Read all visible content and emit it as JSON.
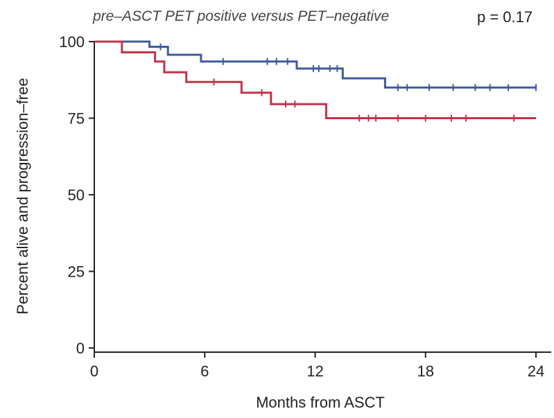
{
  "chart_data": {
    "type": "line",
    "subtype": "kaplan-meier-step",
    "title": "pre–ASCT PET positive versus PET–negative",
    "annotation": "p = 0.17",
    "xlabel": "Months from ASCT",
    "ylabel": "Percent alive and progression–free",
    "xlim": [
      0,
      24
    ],
    "ylim": [
      0,
      100
    ],
    "xticks": [
      0,
      6,
      12,
      18,
      24
    ],
    "yticks": [
      0,
      25,
      50,
      75,
      100
    ],
    "grid": false,
    "legend": "none",
    "series": [
      {
        "color": "#3f5a9c",
        "steps": [
          [
            0,
            100
          ],
          [
            3.0,
            100
          ],
          [
            3.0,
            98.3
          ],
          [
            4.0,
            98.3
          ],
          [
            4.0,
            95.7
          ],
          [
            5.8,
            95.7
          ],
          [
            5.8,
            93.5
          ],
          [
            11.0,
            93.5
          ],
          [
            11.0,
            91.2
          ],
          [
            13.5,
            91.2
          ],
          [
            13.5,
            88.0
          ],
          [
            15.8,
            88.0
          ],
          [
            15.8,
            85.0
          ],
          [
            24.0,
            85.0
          ]
        ],
        "censors": [
          [
            3.6,
            98.3
          ],
          [
            7.0,
            93.5
          ],
          [
            9.4,
            93.5
          ],
          [
            9.9,
            93.5
          ],
          [
            10.5,
            93.5
          ],
          [
            11.9,
            91.2
          ],
          [
            12.2,
            91.2
          ],
          [
            12.8,
            91.2
          ],
          [
            13.2,
            91.2
          ],
          [
            16.5,
            85.0
          ],
          [
            17.0,
            85.0
          ],
          [
            18.2,
            85.0
          ],
          [
            19.5,
            85.0
          ],
          [
            20.7,
            85.0
          ],
          [
            21.5,
            85.0
          ],
          [
            22.5,
            85.0
          ],
          [
            24.0,
            85.0
          ]
        ]
      },
      {
        "color": "#c0334a",
        "steps": [
          [
            0,
            100
          ],
          [
            1.5,
            100
          ],
          [
            1.5,
            96.5
          ],
          [
            3.3,
            96.5
          ],
          [
            3.3,
            93.5
          ],
          [
            3.8,
            93.5
          ],
          [
            3.8,
            90.0
          ],
          [
            5.0,
            90.0
          ],
          [
            5.0,
            86.8
          ],
          [
            8.0,
            86.8
          ],
          [
            8.0,
            83.3
          ],
          [
            9.6,
            83.3
          ],
          [
            9.6,
            79.6
          ],
          [
            12.6,
            79.6
          ],
          [
            12.6,
            75.0
          ],
          [
            24.0,
            75.0
          ]
        ],
        "censors": [
          [
            6.5,
            86.8
          ],
          [
            9.1,
            83.3
          ],
          [
            10.4,
            79.6
          ],
          [
            10.9,
            79.6
          ],
          [
            14.4,
            75.0
          ],
          [
            14.9,
            75.0
          ],
          [
            15.3,
            75.0
          ],
          [
            16.5,
            75.0
          ],
          [
            18.0,
            75.0
          ],
          [
            19.4,
            75.0
          ],
          [
            20.2,
            75.0
          ],
          [
            22.8,
            75.0
          ]
        ]
      }
    ]
  }
}
